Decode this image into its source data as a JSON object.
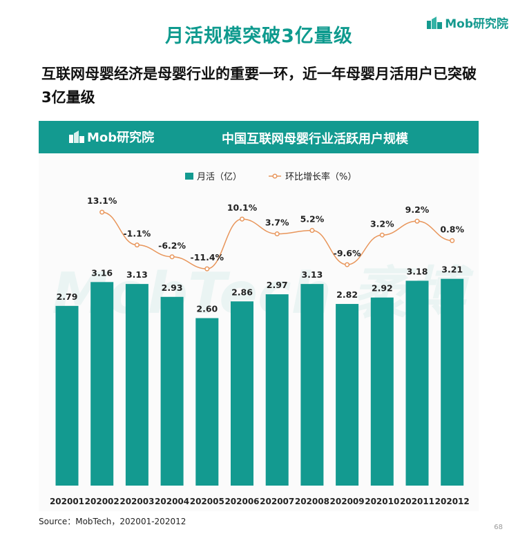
{
  "page": {
    "title": "月活规模突破3亿量级",
    "subtitle": "互联网母婴经济是母婴行业的重要一环，近一年母婴月活用户已突破3亿量级",
    "logo_text": "Mob研究院",
    "source": "Source：MobTech，202001-202012",
    "page_number": "68",
    "watermark": "MobTech 袤博"
  },
  "colors": {
    "brand": "#139a90",
    "bar": "#139a90",
    "line": "#e8955a",
    "title": "#0e9a8e"
  },
  "chart_data": {
    "type": "bar",
    "title": "中国互联网母婴行业活跃用户规模",
    "categories": [
      "202001",
      "202002",
      "202003",
      "202004",
      "202005",
      "202006",
      "202007",
      "202008",
      "202009",
      "202010",
      "202011",
      "202012"
    ],
    "series": [
      {
        "name": "月活（亿）",
        "type": "bar",
        "values": [
          2.79,
          3.16,
          3.13,
          2.93,
          2.6,
          2.86,
          2.97,
          3.13,
          2.82,
          2.92,
          3.18,
          3.21
        ],
        "labels": [
          "2.79",
          "3.16",
          "3.13",
          "2.93",
          "2.60",
          "2.86",
          "2.97",
          "3.13",
          "2.82",
          "2.92",
          "3.18",
          "3.21"
        ]
      },
      {
        "name": "环比增长率（%）",
        "type": "line",
        "values": [
          null,
          13.1,
          -1.1,
          -6.2,
          -11.4,
          10.1,
          3.7,
          5.2,
          -9.6,
          3.2,
          9.2,
          0.8
        ],
        "labels": [
          "",
          "13.1%",
          "-1.1%",
          "-6.2%",
          "-11.4%",
          "10.1%",
          "3.7%",
          "5.2%",
          "-9.6%",
          "3.2%",
          "9.2%",
          "0.8%"
        ]
      }
    ],
    "legend_position": "top-center",
    "grid": false,
    "xlabel": "",
    "ylabel": ""
  }
}
